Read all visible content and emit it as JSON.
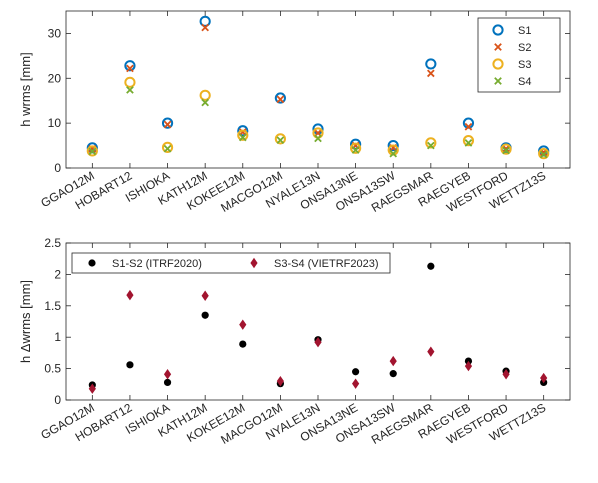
{
  "chart_data": [
    {
      "type": "scatter",
      "title": "",
      "xlabel": "",
      "ylabel": "h wrms [mm]",
      "ylim": [
        0,
        35
      ],
      "yticks": [
        "0",
        "10",
        "20",
        "30"
      ],
      "grid": false,
      "legend_position": "top-right",
      "categories": [
        "GGAO12M",
        "HOBART12",
        "ISHIOKA",
        "KATH12M",
        "KOKEE12M",
        "MACGO12M",
        "NYALE13N",
        "ONSA13NE",
        "ONSA13SW",
        "RAEGSMAR",
        "RAEGYEB",
        "WESTFORD",
        "WETTZ13S"
      ],
      "series": [
        {
          "name": "S1",
          "marker": "circle",
          "color": "#0072BD",
          "values": [
            4.5,
            22.8,
            10.0,
            32.7,
            8.3,
            15.6,
            8.7,
            5.3,
            5.0,
            23.2,
            10.0,
            4.5,
            3.8
          ]
        },
        {
          "name": "S2",
          "marker": "x",
          "color": "#D95319",
          "values": [
            4.3,
            22.2,
            9.7,
            31.3,
            8.0,
            15.3,
            7.8,
            5.0,
            4.5,
            21.1,
            9.2,
            4.3,
            3.5
          ]
        },
        {
          "name": "S3",
          "marker": "circle",
          "color": "#EDB120",
          "values": [
            3.8,
            19.1,
            4.6,
            16.2,
            7.3,
            6.5,
            7.8,
            4.4,
            4.0,
            5.6,
            6.1,
            4.2,
            3.2
          ]
        },
        {
          "name": "S4",
          "marker": "x",
          "color": "#77AC30",
          "values": [
            3.7,
            17.4,
            4.3,
            14.6,
            6.8,
            6.2,
            6.6,
            4.0,
            3.2,
            5.0,
            5.6,
            3.9,
            3.0
          ]
        }
      ]
    },
    {
      "type": "scatter",
      "title": "",
      "xlabel": "",
      "ylabel": "h Δwrms [mm]",
      "ylim": [
        0,
        2.5
      ],
      "yticks": [
        "0",
        "0.5",
        "1",
        "1.5",
        "2",
        "2.5"
      ],
      "grid": false,
      "legend_position": "top-left",
      "categories": [
        "GGAO12M",
        "HOBART12",
        "ISHIOKA",
        "KATH12M",
        "KOKEE12M",
        "MACGO12M",
        "NYALE13N",
        "ONSA13NE",
        "ONSA13SW",
        "RAEGSMAR",
        "RAEGYEB",
        "WESTFORD",
        "WETTZ13S"
      ],
      "series": [
        {
          "name": "S1-S2 (ITRF2020)",
          "marker": "dot",
          "color": "#000000",
          "values": [
            0.24,
            0.56,
            0.28,
            1.35,
            0.89,
            0.26,
            0.96,
            0.45,
            0.42,
            2.13,
            0.62,
            0.46,
            0.28
          ]
        },
        {
          "name": "S3-S4 (VIETRF2023)",
          "marker": "diamond",
          "color": "#A2142F",
          "values": [
            0.18,
            1.67,
            0.41,
            1.66,
            1.2,
            0.3,
            0.92,
            0.26,
            0.62,
            0.77,
            0.54,
            0.41,
            0.35
          ]
        }
      ]
    }
  ]
}
